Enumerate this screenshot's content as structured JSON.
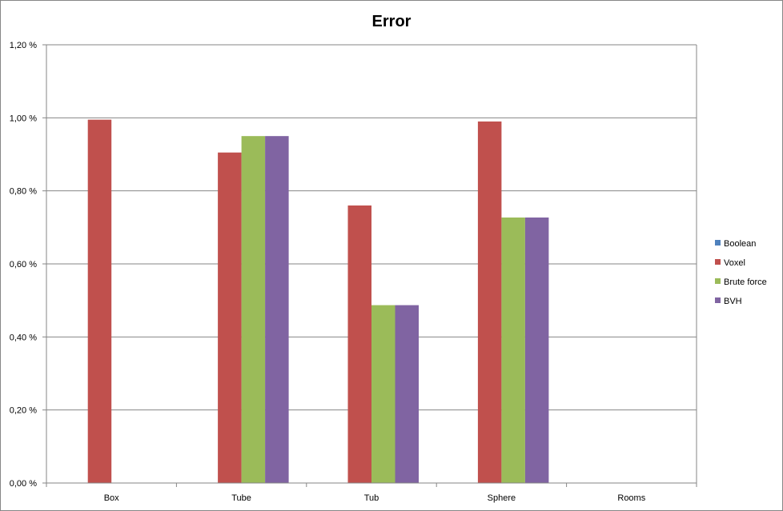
{
  "chart_data": {
    "type": "bar",
    "title": "Error",
    "xlabel": "",
    "ylabel": "",
    "categories": [
      "Box",
      "Tube",
      "Tub",
      "Sphere",
      "Rooms"
    ],
    "ylim": [
      0,
      1.2
    ],
    "yticks": [
      0,
      0.2,
      0.4,
      0.6,
      0.8,
      1.0,
      1.2
    ],
    "ytick_labels": [
      "0,00 %",
      "0,20 %",
      "0,40 %",
      "0,60 %",
      "0,80 %",
      "1,00 %",
      "1,20 %"
    ],
    "grid": true,
    "legend_position": "right",
    "series": [
      {
        "name": "Boolean",
        "color": "#4F81BD",
        "values": [
          0,
          0,
          0,
          0,
          0
        ]
      },
      {
        "name": "Voxel",
        "color": "#C0504D",
        "values": [
          0.995,
          0.905,
          0.76,
          0.99,
          0
        ]
      },
      {
        "name": "Brute force",
        "color": "#9BBB59",
        "values": [
          0,
          0.95,
          0.487,
          0.727,
          0
        ]
      },
      {
        "name": "BVH",
        "color": "#8064A2",
        "values": [
          0,
          0.95,
          0.487,
          0.727,
          0
        ]
      }
    ]
  }
}
